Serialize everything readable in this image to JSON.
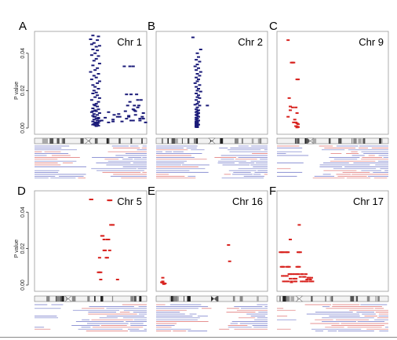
{
  "figure": {
    "y_axis_label": "P value"
  },
  "colors": {
    "blue": "#1a1a78",
    "red": "#d8231f",
    "track_blue": "#3c46b4",
    "track_red": "#d23c3c",
    "axis": "#333333"
  },
  "chart_data": [
    {
      "type": "scatter",
      "panel_letter": "A",
      "title": "Chr 1",
      "color": "blue",
      "ylim": [
        0,
        0.05
      ],
      "yticks": [
        "0.00",
        "0.02",
        "0.04"
      ],
      "xlabel": "",
      "ylabel": "P value",
      "x": [
        0.52,
        0.57,
        0.5,
        0.56,
        0.53,
        0.51,
        0.58,
        0.55,
        0.52,
        0.56,
        0.54,
        0.51,
        0.57,
        0.55,
        0.53,
        0.58,
        0.52,
        0.56,
        0.54,
        0.5,
        0.57,
        0.53,
        0.55,
        0.51,
        0.58,
        0.56,
        0.52,
        0.54,
        0.57,
        0.53,
        0.55,
        0.52,
        0.56,
        0.54,
        0.58,
        0.51,
        0.57,
        0.55,
        0.53,
        0.56,
        0.52,
        0.57,
        0.54,
        0.55,
        0.51,
        0.58,
        0.53,
        0.56,
        0.52,
        0.54,
        0.57,
        0.55,
        0.53,
        0.56,
        0.58,
        0.52,
        0.54,
        0.57,
        0.55,
        0.53,
        0.56,
        0.52,
        0.54,
        0.57,
        0.55,
        0.56,
        0.53,
        0.52,
        0.54,
        0.57,
        0.6,
        0.63,
        0.66,
        0.7,
        0.74,
        0.78,
        0.82,
        0.86,
        0.9,
        0.94,
        0.8,
        0.85,
        0.88,
        0.92,
        0.95,
        0.83,
        0.89,
        0.93,
        0.97,
        0.82,
        0.86,
        0.91,
        0.96,
        0.84,
        0.88,
        0.94,
        0.99,
        0.81,
        0.9,
        0.92,
        0.66,
        0.71,
        0.76,
        0.85,
        0.89,
        0.97,
        0.84,
        0.88,
        0.7,
        0.75
      ],
      "y": [
        0.0495,
        0.049,
        0.0475,
        0.047,
        0.0455,
        0.0448,
        0.044,
        0.0435,
        0.042,
        0.0415,
        0.04,
        0.039,
        0.0385,
        0.037,
        0.036,
        0.0345,
        0.0335,
        0.032,
        0.031,
        0.03,
        0.029,
        0.028,
        0.027,
        0.026,
        0.025,
        0.024,
        0.023,
        0.022,
        0.021,
        0.02,
        0.019,
        0.0185,
        0.0175,
        0.0165,
        0.016,
        0.015,
        0.014,
        0.013,
        0.0125,
        0.0115,
        0.0105,
        0.01,
        0.0095,
        0.009,
        0.0085,
        0.008,
        0.0075,
        0.007,
        0.0065,
        0.006,
        0.0055,
        0.005,
        0.0045,
        0.004,
        0.0038,
        0.0035,
        0.003,
        0.0028,
        0.0025,
        0.0022,
        0.002,
        0.0018,
        0.0015,
        0.0012,
        0.001,
        0.003,
        0.006,
        0.009,
        0.012,
        0.005,
        0.004,
        0.0055,
        0.003,
        0.0045,
        0.006,
        0.0035,
        0.005,
        0.004,
        0.007,
        0.005,
        0.033,
        0.033,
        0.033,
        0.015,
        0.015,
        0.012,
        0.012,
        0.012,
        0.008,
        0.018,
        0.018,
        0.018,
        0.006,
        0.006,
        0.004,
        0.004,
        0.003,
        0.009,
        0.009,
        0.011,
        0.0085,
        0.007,
        0.006,
        0.014,
        0.0095,
        0.005,
        0.0065,
        0.01,
        0.0035,
        0.0075
      ]
    },
    {
      "type": "scatter",
      "panel_letter": "B",
      "title": "Chr 2",
      "color": "blue",
      "ylim": [
        0,
        0.05
      ],
      "yticks": [],
      "xlabel": "",
      "ylabel": "",
      "x": [
        0.33,
        0.4,
        0.37,
        0.38,
        0.36,
        0.39,
        0.37,
        0.35,
        0.38,
        0.36,
        0.4,
        0.37,
        0.39,
        0.36,
        0.38,
        0.37,
        0.35,
        0.39,
        0.36,
        0.38,
        0.37,
        0.4,
        0.36,
        0.38,
        0.37,
        0.39,
        0.36,
        0.38,
        0.37,
        0.35,
        0.39,
        0.37,
        0.36,
        0.38,
        0.37,
        0.36,
        0.38,
        0.37,
        0.36,
        0.37,
        0.38,
        0.36,
        0.37,
        0.36,
        0.38,
        0.37,
        0.36,
        0.37,
        0.36,
        0.37,
        0.36,
        0.37,
        0.36,
        0.38,
        0.37,
        0.36,
        0.37,
        0.36,
        0.37,
        0.36,
        0.37,
        0.36,
        0.37,
        0.46
      ],
      "y": [
        0.0485,
        0.042,
        0.04,
        0.038,
        0.0365,
        0.0355,
        0.034,
        0.033,
        0.032,
        0.031,
        0.03,
        0.029,
        0.028,
        0.027,
        0.026,
        0.025,
        0.024,
        0.023,
        0.022,
        0.021,
        0.02,
        0.0195,
        0.0185,
        0.0175,
        0.0165,
        0.016,
        0.015,
        0.014,
        0.013,
        0.0125,
        0.012,
        0.011,
        0.01,
        0.0095,
        0.009,
        0.0085,
        0.008,
        0.0075,
        0.007,
        0.0065,
        0.006,
        0.0055,
        0.005,
        0.0045,
        0.004,
        0.0038,
        0.0035,
        0.0032,
        0.003,
        0.0028,
        0.0025,
        0.0022,
        0.002,
        0.0018,
        0.0015,
        0.0013,
        0.0012,
        0.001,
        0.0009,
        0.0008,
        0.0006,
        0.0005,
        0.0004,
        0.012
      ]
    },
    {
      "type": "scatter",
      "panel_letter": "C",
      "title": "Chr 9",
      "color": "red",
      "ylim": [
        0,
        0.05
      ],
      "yticks": [],
      "xlabel": "",
      "ylabel": "",
      "x": [
        0.1,
        0.13,
        0.14,
        0.15,
        0.18,
        0.19,
        0.11,
        0.12,
        0.14,
        0.17,
        0.18,
        0.1,
        0.15,
        0.17,
        0.18,
        0.19,
        0.17,
        0.18,
        0.19,
        0.18,
        0.16,
        0.12
      ],
      "y": [
        0.047,
        0.035,
        0.035,
        0.035,
        0.026,
        0.026,
        0.016,
        0.0115,
        0.011,
        0.011,
        0.008,
        0.006,
        0.003,
        0.003,
        0.0025,
        0.002,
        0.001,
        0.0008,
        0.0005,
        0.0003,
        0.0045,
        0.0095
      ]
    },
    {
      "type": "scatter",
      "panel_letter": "D",
      "title": "Chr 5",
      "color": "red",
      "ylim": [
        0,
        0.05
      ],
      "yticks": [
        "0.00",
        "0.02",
        "0.04"
      ],
      "xlabel": "",
      "ylabel": "P value",
      "x": [
        0.5,
        0.51,
        0.66,
        0.67,
        0.68,
        0.68,
        0.69,
        0.7,
        0.6,
        0.61,
        0.62,
        0.65,
        0.66,
        0.67,
        0.62,
        0.63,
        0.64,
        0.65,
        0.58,
        0.59,
        0.57,
        0.58,
        0.59,
        0.74
      ],
      "y": [
        0.047,
        0.047,
        0.0465,
        0.0465,
        0.0465,
        0.033,
        0.033,
        0.033,
        0.027,
        0.027,
        0.025,
        0.025,
        0.025,
        0.019,
        0.019,
        0.019,
        0.015,
        0.015,
        0.015,
        0.007,
        0.007,
        0.007,
        0.003,
        0.003
      ]
    },
    {
      "type": "scatter",
      "panel_letter": "E",
      "title": "Chr 16",
      "color": "red",
      "ylim": [
        0,
        0.05
      ],
      "yticks": [],
      "xlabel": "",
      "ylabel": "",
      "x": [
        0.65,
        0.66,
        0.06,
        0.05,
        0.06,
        0.07,
        0.08,
        0.07,
        0.06
      ],
      "y": [
        0.022,
        0.013,
        0.004,
        0.0015,
        0.0012,
        0.001,
        0.0008,
        0.0005,
        0.002
      ]
    },
    {
      "type": "scatter",
      "panel_letter": "F",
      "title": "Chr 17",
      "color": "red",
      "ylim": [
        0,
        0.05
      ],
      "yticks": [],
      "xlabel": "",
      "ylabel": "",
      "x": [
        0.2,
        0.12,
        0.03,
        0.04,
        0.05,
        0.06,
        0.08,
        0.09,
        0.1,
        0.19,
        0.2,
        0.21,
        0.04,
        0.05,
        0.06,
        0.09,
        0.1,
        0.11,
        0.18,
        0.19,
        0.2,
        0.06,
        0.08,
        0.1,
        0.13,
        0.16,
        0.17,
        0.22,
        0.24,
        0.26,
        0.27,
        0.3,
        0.32,
        0.11,
        0.12,
        0.14,
        0.16,
        0.18,
        0.19,
        0.22,
        0.23,
        0.26,
        0.28,
        0.29,
        0.31,
        0.05,
        0.07,
        0.09,
        0.12,
        0.15,
        0.17,
        0.21,
        0.24,
        0.25,
        0.27,
        0.3,
        0.13
      ],
      "y": [
        0.033,
        0.025,
        0.018,
        0.018,
        0.018,
        0.018,
        0.018,
        0.018,
        0.018,
        0.018,
        0.018,
        0.018,
        0.01,
        0.01,
        0.01,
        0.01,
        0.01,
        0.01,
        0.01,
        0.01,
        0.01,
        0.002,
        0.002,
        0.002,
        0.002,
        0.002,
        0.002,
        0.002,
        0.002,
        0.002,
        0.002,
        0.002,
        0.002,
        0.006,
        0.006,
        0.006,
        0.006,
        0.006,
        0.006,
        0.006,
        0.006,
        0.006,
        0.004,
        0.004,
        0.004,
        0.005,
        0.005,
        0.005,
        0.0035,
        0.0035,
        0.0035,
        0.0045,
        0.0045,
        0.0045,
        0.003,
        0.003,
        0.0015
      ]
    }
  ]
}
